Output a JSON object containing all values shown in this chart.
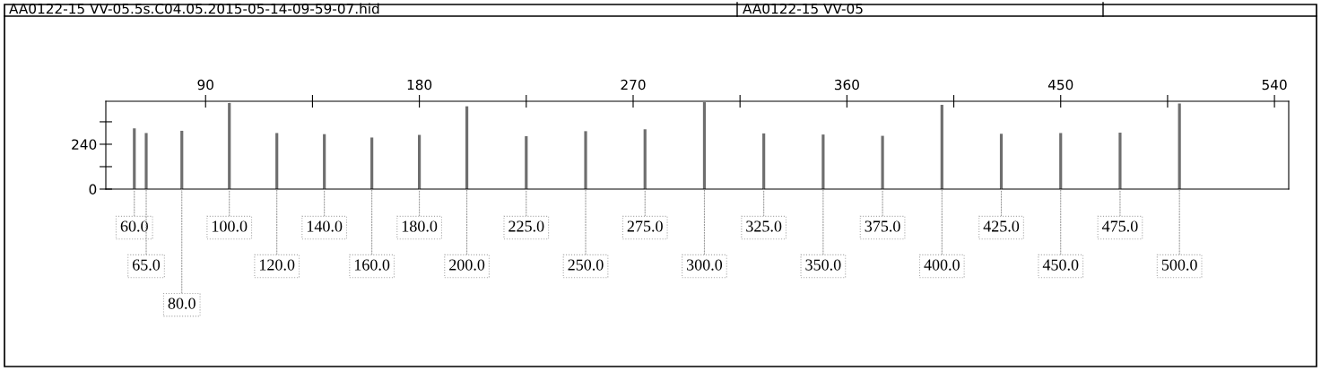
{
  "chart_data": {
    "type": "bar",
    "title": "AA0122-15 VV-05.5s.C04.05.2015-05-14-09-59-07.hid",
    "subtitle": "AA0122-15 VV-05",
    "x": [
      60,
      65,
      80,
      100,
      120,
      140,
      160,
      180,
      200,
      225,
      250,
      275,
      300,
      325,
      350,
      375,
      400,
      425,
      450,
      475,
      500
    ],
    "series": [
      {
        "color": "#6e6e6e",
        "values": [
          325,
          300,
          312,
          461,
          300,
          294,
          276,
          290,
          443,
          283,
          310,
          320,
          465,
          298,
          292,
          285,
          451,
          296,
          300,
          302,
          458
        ]
      }
    ],
    "annotations": [
      {
        "text": "60.0",
        "x": 60,
        "y": 0
      },
      {
        "text": "65.0",
        "x": 65,
        "y": 0
      },
      {
        "text": "80.0",
        "x": 80,
        "y": 0
      },
      {
        "text": "100.0",
        "x": 100,
        "y": 0
      },
      {
        "text": "120.0",
        "x": 120,
        "y": 0
      },
      {
        "text": "140.0",
        "x": 140,
        "y": 0
      },
      {
        "text": "160.0",
        "x": 160,
        "y": 0
      },
      {
        "text": "180.0",
        "x": 180,
        "y": 0
      },
      {
        "text": "200.0",
        "x": 200,
        "y": 0
      },
      {
        "text": "225.0",
        "x": 225,
        "y": 0
      },
      {
        "text": "250.0",
        "x": 250,
        "y": 0
      },
      {
        "text": "275.0",
        "x": 275,
        "y": 0
      },
      {
        "text": "300.0",
        "x": 300,
        "y": 0
      },
      {
        "text": "325.0",
        "x": 325,
        "y": 0
      },
      {
        "text": "350.0",
        "x": 350,
        "y": 0
      },
      {
        "text": "375.0",
        "x": 375,
        "y": 0
      },
      {
        "text": "400.0",
        "x": 400,
        "y": 0
      },
      {
        "text": "425.0",
        "x": 425,
        "y": 0
      },
      {
        "text": "450.0",
        "x": 450,
        "y": 0
      },
      {
        "text": "475.0",
        "x": 475,
        "y": 0
      },
      {
        "text": "500.0",
        "x": 500,
        "y": 0
      }
    ],
    "xlim": [
      48,
      546
    ],
    "xticks": [
      90,
      {
        "value": 135,
        "label": null
      },
      180,
      {
        "value": 225,
        "label": null
      },
      270,
      {
        "value": 315,
        "label": null
      },
      360,
      {
        "value": 405,
        "label": null
      },
      450,
      {
        "value": 495,
        "label": null
      },
      540
    ],
    "ylim": [
      0,
      470
    ],
    "yticks": [
      0,
      {
        "value": 120,
        "label": null
      },
      240,
      {
        "value": 360,
        "label": null
      }
    ],
    "grid": false
  }
}
